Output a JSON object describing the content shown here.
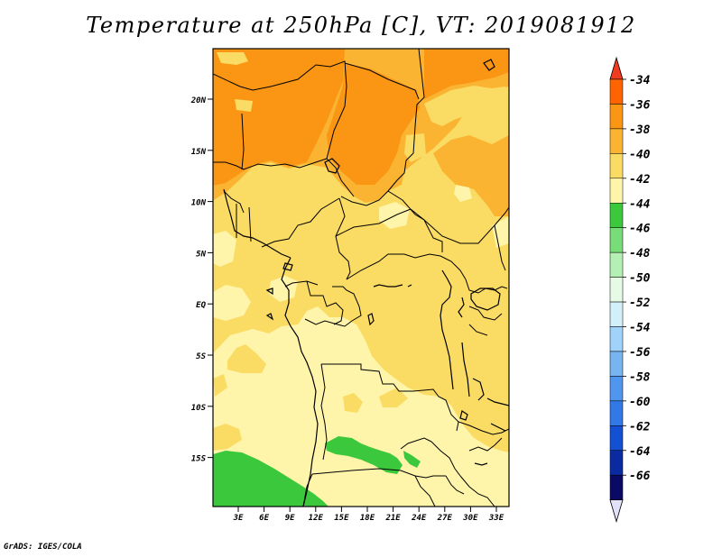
{
  "title": "Temperature at 250hPa [C], VT: 2019081912",
  "footer": "GrADS: IGES/COLA",
  "map": {
    "lat_labels": [
      "20N",
      "15N",
      "10N",
      "5N",
      "EQ",
      "5S",
      "10S",
      "15S"
    ],
    "lon_labels": [
      "3E",
      "6E",
      "9E",
      "12E",
      "15E",
      "18E",
      "21E",
      "24E",
      "27E",
      "30E",
      "33E"
    ]
  },
  "colorbar": {
    "labels": [
      "-34",
      "-36",
      "-38",
      "-40",
      "-42",
      "-44",
      "-46",
      "-48",
      "-50",
      "-52",
      "-54",
      "-56",
      "-58",
      "-60",
      "-62",
      "-64",
      "-66"
    ],
    "colors": {
      "top_arrow": "#f03c1e",
      "bands": [
        "#ff6400",
        "#fa9614",
        "#fab432",
        "#fadc64",
        "#fff5aa",
        "#3cc83c",
        "#78dc78",
        "#b4f0b4",
        "#e6fae6",
        "#d2f0fa",
        "#a0d2fa",
        "#78b4f0",
        "#5096ee",
        "#3278e6",
        "#1450d2",
        "#0a2aa0",
        "#0a0a64"
      ],
      "bottom_arrow": "#e1e1fa"
    }
  },
  "fill_colors": {
    "c36": "#fa9614",
    "c38": "#fab432",
    "c40": "#fadc64",
    "c42": "#fff5aa",
    "c44": "#3cc83c"
  }
}
